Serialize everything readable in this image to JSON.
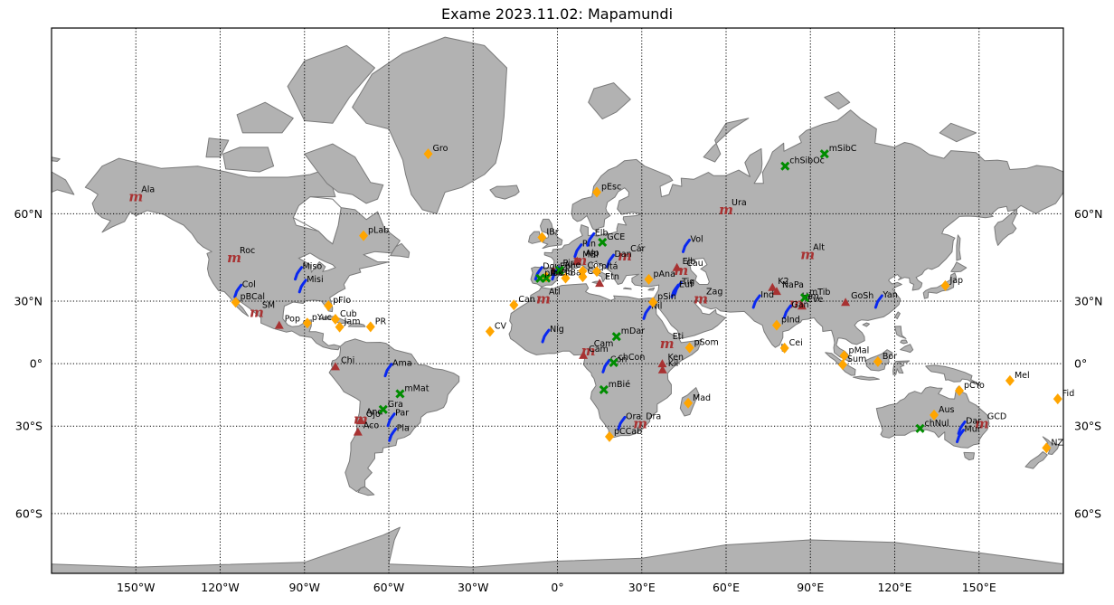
{
  "title": "Exame 2023.11.02: Mapamundi",
  "projection": "mercator",
  "extent": {
    "lon": [
      -180,
      180
    ],
    "lat": [
      -72,
      84
    ]
  },
  "colors": {
    "land": "#b2b2b2",
    "coast": "#7a7a7a",
    "water": "#ffffff",
    "mountain": "#a83232",
    "river": "#0a28f0",
    "region": "#ffa500",
    "plain": "#008c00"
  },
  "grid": {
    "style": "dotted",
    "lon": [
      -150,
      -120,
      -90,
      -60,
      -30,
      0,
      30,
      60,
      90,
      120,
      150
    ],
    "lat": [
      -60,
      -30,
      0,
      30,
      60
    ]
  },
  "ticks": {
    "x": [
      "150°W",
      "120°W",
      "90°W",
      "60°W",
      "30°W",
      "0°",
      "30°E",
      "60°E",
      "90°E",
      "120°E",
      "150°E"
    ],
    "y_left": [
      "60°S",
      "30°S",
      "0°",
      "30°N",
      "60°N"
    ],
    "y_right": [
      "60°S",
      "30°S",
      "0°",
      "30°N",
      "60°N"
    ]
  },
  "markers": [
    {
      "label": "Ala",
      "lon": -150,
      "lat": 64,
      "kind": "range"
    },
    {
      "label": "Roc",
      "lon": -115,
      "lat": 47,
      "kind": "range"
    },
    {
      "label": "SM",
      "lon": -107,
      "lat": 25,
      "kind": "range"
    },
    {
      "label": "Pop",
      "lon": -99,
      "lat": 19,
      "kind": "peak"
    },
    {
      "label": "Chi",
      "lon": -79,
      "lat": -1.5,
      "kind": "peak"
    },
    {
      "label": "And",
      "lon": -70,
      "lat": -27,
      "kind": "range"
    },
    {
      "label": "Ojo",
      "lon": -70,
      "lat": -27.5,
      "kind": "peak"
    },
    {
      "label": "Aco",
      "lon": -71,
      "lat": -32.5,
      "kind": "peak"
    },
    {
      "label": "Atl",
      "lon": -5,
      "lat": 31,
      "kind": "range"
    },
    {
      "label": "Pir",
      "lon": 0,
      "lat": 42.5,
      "kind": "range"
    },
    {
      "label": "Alp",
      "lon": 8,
      "lat": 46,
      "kind": "range"
    },
    {
      "label": "MBl",
      "lon": 7,
      "lat": 45.8,
      "kind": "peak"
    },
    {
      "label": "Cár",
      "lon": 24,
      "lat": 47.5,
      "kind": "range"
    },
    {
      "label": "Etn",
      "lon": 15,
      "lat": 37.5,
      "kind": "peak"
    },
    {
      "label": "Elb",
      "lon": 42.5,
      "lat": 43.5,
      "kind": "peak"
    },
    {
      "label": "Cau",
      "lon": 44,
      "lat": 42.5,
      "kind": "range"
    },
    {
      "label": "Ura",
      "lon": 60,
      "lat": 61,
      "kind": "range"
    },
    {
      "label": "Zag",
      "lon": 51,
      "lat": 31,
      "kind": "range"
    },
    {
      "label": "Alt",
      "lon": 89,
      "lat": 48,
      "kind": "range"
    },
    {
      "label": "K2",
      "lon": 76.5,
      "lat": 35.8,
      "kind": "peak"
    },
    {
      "label": "NaPa",
      "lon": 78,
      "lat": 34.2,
      "kind": "peak"
    },
    {
      "label": "Him",
      "lon": 85,
      "lat": 29,
      "kind": "range"
    },
    {
      "label": "Eve",
      "lon": 87,
      "lat": 27.9,
      "kind": "peak"
    },
    {
      "label": "GoSh",
      "lon": 102.5,
      "lat": 29.5,
      "kind": "peak"
    },
    {
      "label": "Eti",
      "lon": 39,
      "lat": 10,
      "kind": "range"
    },
    {
      "label": "Cam",
      "lon": 11,
      "lat": 6.5,
      "kind": "range"
    },
    {
      "label": "Cam",
      "lon": 9.2,
      "lat": 4.2,
      "kind": "peak"
    },
    {
      "label": "Ken",
      "lon": 37.3,
      "lat": 0,
      "kind": "peak"
    },
    {
      "label": "Kil",
      "lon": 37.4,
      "lat": -3.1,
      "kind": "peak"
    },
    {
      "label": "Dra",
      "lon": 29.5,
      "lat": -29,
      "kind": "range"
    },
    {
      "label": "GCD",
      "lon": 151,
      "lat": -29,
      "kind": "range"
    },
    {
      "label": "Miso",
      "lon": -92,
      "lat": 41.5,
      "kind": "river"
    },
    {
      "label": "Misi",
      "lon": -90.5,
      "lat": 36.5,
      "kind": "river"
    },
    {
      "label": "Col",
      "lon": -113.5,
      "lat": 34.5,
      "kind": "river"
    },
    {
      "label": "Ama",
      "lon": -60,
      "lat": -3,
      "kind": "river"
    },
    {
      "label": "Par",
      "lon": -59,
      "lat": -27,
      "kind": "river"
    },
    {
      "label": "Pla",
      "lon": -58.5,
      "lat": -33.5,
      "kind": "river"
    },
    {
      "label": "Rin",
      "lon": 7.5,
      "lat": 49.5,
      "kind": "river"
    },
    {
      "label": "Elb",
      "lon": 12,
      "lat": 53,
      "kind": "river"
    },
    {
      "label": "Dan",
      "lon": 19,
      "lat": 46,
      "kind": "river"
    },
    {
      "label": "Vol",
      "lon": 46,
      "lat": 51,
      "kind": "river"
    },
    {
      "label": "Dou",
      "lon": -6.5,
      "lat": 41.5,
      "kind": "river"
    },
    {
      "label": "Ebr",
      "lon": -0.5,
      "lat": 41.5,
      "kind": "river"
    },
    {
      "label": "Tig",
      "lon": 43,
      "lat": 35.5,
      "kind": "river"
    },
    {
      "label": "Euf",
      "lon": 42,
      "lat": 34.5,
      "kind": "river"
    },
    {
      "label": "Nil",
      "lon": 32,
      "lat": 25,
      "kind": "river"
    },
    {
      "label": "Níg",
      "lon": -4,
      "lat": 14,
      "kind": "river"
    },
    {
      "label": "Con",
      "lon": 17.5,
      "lat": -1,
      "kind": "river"
    },
    {
      "label": "Ora",
      "lon": 23,
      "lat": -28.5,
      "kind": "river"
    },
    {
      "label": "Ind",
      "lon": 71,
      "lat": 30,
      "kind": "river"
    },
    {
      "label": "Gan",
      "lon": 82,
      "lat": 25.5,
      "kind": "river"
    },
    {
      "label": "Yan",
      "lon": 114.5,
      "lat": 30,
      "kind": "river"
    },
    {
      "label": "Dar",
      "lon": 144,
      "lat": -30.5,
      "kind": "river"
    },
    {
      "label": "Mur",
      "lon": 143.5,
      "lat": -34,
      "kind": "river"
    },
    {
      "label": "Gro",
      "lon": -46,
      "lat": 72,
      "kind": "region"
    },
    {
      "label": "pLab",
      "lon": -69,
      "lat": 54,
      "kind": "region"
    },
    {
      "label": "pBCal",
      "lon": -114.5,
      "lat": 29.5,
      "kind": "region"
    },
    {
      "label": "pFlo",
      "lon": -81.5,
      "lat": 28,
      "kind": "region"
    },
    {
      "label": "pYuc",
      "lon": -89,
      "lat": 20,
      "kind": "region"
    },
    {
      "label": "Cub",
      "lon": -79,
      "lat": 21.8,
      "kind": "region"
    },
    {
      "label": "Jam",
      "lon": -77.5,
      "lat": 18.1,
      "kind": "region"
    },
    {
      "label": "PR",
      "lon": -66.5,
      "lat": 18.2,
      "kind": "region"
    },
    {
      "label": "CV",
      "lon": -24,
      "lat": 16,
      "kind": "region"
    },
    {
      "label": "Can",
      "lon": -15.5,
      "lat": 28.3,
      "kind": "region"
    },
    {
      "label": "IBr",
      "lon": -5.5,
      "lat": 53.5,
      "kind": "region"
    },
    {
      "label": "pEsc",
      "lon": 14,
      "lat": 65,
      "kind": "region"
    },
    {
      "label": "pIbe",
      "lon": -4,
      "lat": 40,
      "kind": "region"
    },
    {
      "label": "Bal",
      "lon": 2.9,
      "lat": 39.5,
      "kind": "region"
    },
    {
      "label": "Cór",
      "lon": 9,
      "lat": 42.2,
      "kind": "region"
    },
    {
      "label": "Cer",
      "lon": 9,
      "lat": 40,
      "kind": "region"
    },
    {
      "label": "pItá",
      "lon": 14,
      "lat": 42,
      "kind": "region"
    },
    {
      "label": "pAna",
      "lon": 32.5,
      "lat": 39,
      "kind": "region"
    },
    {
      "label": "pSin",
      "lon": 34,
      "lat": 29.5,
      "kind": "region"
    },
    {
      "label": "pSom",
      "lon": 47,
      "lat": 8,
      "kind": "region"
    },
    {
      "label": "pInd",
      "lon": 78,
      "lat": 19,
      "kind": "region"
    },
    {
      "label": "Cei",
      "lon": 80.8,
      "lat": 7.8,
      "kind": "region"
    },
    {
      "label": "pMal",
      "lon": 102,
      "lat": 4,
      "kind": "region"
    },
    {
      "label": "Sum",
      "lon": 101.5,
      "lat": -0.5,
      "kind": "region"
    },
    {
      "label": "Bor",
      "lon": 114,
      "lat": 1,
      "kind": "region"
    },
    {
      "label": "Jap",
      "lon": 138,
      "lat": 36.5,
      "kind": "region"
    },
    {
      "label": "Mad",
      "lon": 46.5,
      "lat": -19.5,
      "kind": "region"
    },
    {
      "label": "pCYo",
      "lon": 143,
      "lat": -13.5,
      "kind": "region"
    },
    {
      "label": "Mel",
      "lon": 161,
      "lat": -8.5,
      "kind": "region"
    },
    {
      "label": "Fid",
      "lon": 178,
      "lat": -17.5,
      "kind": "region"
    },
    {
      "label": "Aus",
      "lon": 134,
      "lat": -25,
      "kind": "region"
    },
    {
      "label": "NZ",
      "lon": 174,
      "lat": -39,
      "kind": "region"
    },
    {
      "label": "pCCab",
      "lon": 18.5,
      "lat": -34.5,
      "kind": "region"
    },
    {
      "label": "mCIb",
      "lon": -4,
      "lat": 39.5,
      "kind": "plain"
    },
    {
      "label": "Ane",
      "lon": 0.8,
      "lat": 42.5,
      "kind": "plain"
    },
    {
      "label": "pIbe",
      "lon": -6.2,
      "lat": 39.4,
      "kind": "plain"
    },
    {
      "label": "GCE",
      "lon": 16,
      "lat": 52,
      "kind": "plain"
    },
    {
      "label": "chSibOc",
      "lon": 81,
      "lat": 70,
      "kind": "plain"
    },
    {
      "label": "mSibC",
      "lon": 95,
      "lat": 72,
      "kind": "plain"
    },
    {
      "label": "mTib",
      "lon": 88,
      "lat": 31.5,
      "kind": "plain"
    },
    {
      "label": "mDar",
      "lon": 21,
      "lat": 13.5,
      "kind": "plain"
    },
    {
      "label": "chCon",
      "lon": 20,
      "lat": 0.5,
      "kind": "plain"
    },
    {
      "label": "mBié",
      "lon": 16.5,
      "lat": -13,
      "kind": "plain"
    },
    {
      "label": "mMat",
      "lon": -56,
      "lat": -15,
      "kind": "plain"
    },
    {
      "label": "Gra",
      "lon": -62,
      "lat": -22.5,
      "kind": "plain"
    },
    {
      "label": "chNul",
      "lon": 129,
      "lat": -31,
      "kind": "plain"
    }
  ]
}
